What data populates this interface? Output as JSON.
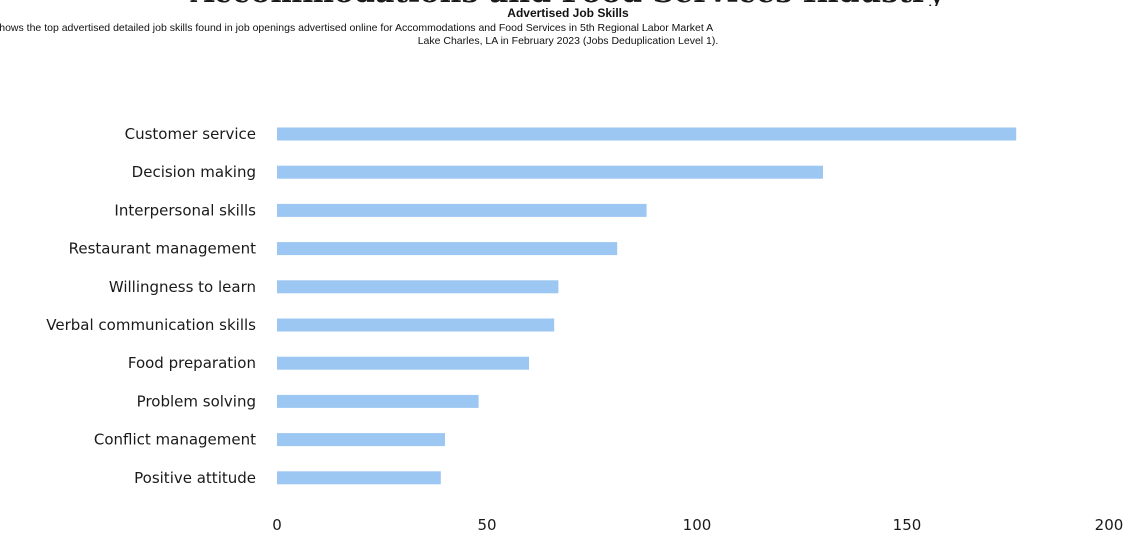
{
  "header": {
    "clipped_heading": "Accommodations and Food Services Industry"
  },
  "chart_data": {
    "type": "bar",
    "orientation": "horizontal",
    "title": "Advertised Job Skills",
    "subtitle_line1": "shows the top advertised detailed job skills found in job openings advertised online for Accommodations and Food Services in 5th Regional Labor Market A",
    "subtitle_line2": "Lake Charles, LA in February 2023 (Jobs Deduplication Level 1).",
    "categories": [
      "Customer service",
      "Decision making",
      "Interpersonal skills",
      "Restaurant management",
      "Willingness to learn",
      "Verbal communication skills",
      "Food preparation",
      "Problem solving",
      "Conflict management",
      "Positive attitude"
    ],
    "values": [
      176,
      130,
      88,
      81,
      67,
      66,
      60,
      48,
      40,
      39
    ],
    "xlim": [
      0,
      200
    ],
    "ticks": [
      "0",
      "50",
      "100",
      "150",
      "200"
    ],
    "tick_values": [
      0,
      50,
      100,
      150,
      200
    ],
    "grid": false,
    "bar_color": "#9cc7f2"
  }
}
